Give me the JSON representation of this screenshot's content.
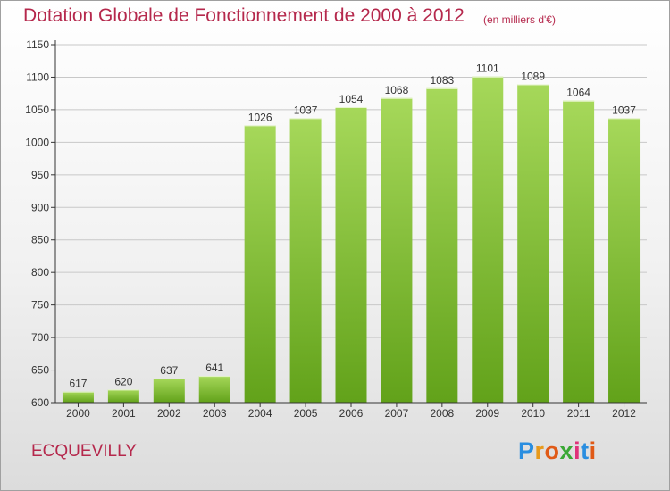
{
  "header": {
    "title": "Dotation Globale de Fonctionnement de 2000 à 2012",
    "subtitle": "(en milliers d'€)"
  },
  "footer": {
    "commune": "ECQUEVILLY",
    "logo_letters": [
      "P",
      "r",
      "o",
      "x",
      "i",
      "t",
      "i"
    ],
    "logo_colors": [
      "#2a8ee0",
      "#e89a1c",
      "#e05a17",
      "#3aa835",
      "#e0337a",
      "#2a8ee0",
      "#e05a17"
    ]
  },
  "colors": {
    "bar_light": "#a6d85a",
    "bar_dark": "#62a21a",
    "axis": "#333333",
    "grid": "#c8c8c8",
    "brand": "#b5284c"
  },
  "chart_data": {
    "type": "bar",
    "categories": [
      "2000",
      "2001",
      "2002",
      "2003",
      "2004",
      "2005",
      "2006",
      "2007",
      "2008",
      "2009",
      "2010",
      "2011",
      "2012"
    ],
    "values": [
      617,
      620,
      637,
      641,
      1026,
      1037,
      1054,
      1068,
      1083,
      1101,
      1089,
      1064,
      1037
    ],
    "value_labels": [
      "617",
      "620",
      "637",
      "641",
      "1026",
      "1037",
      "1054",
      "1068",
      "1083",
      "1101",
      "1089",
      "1064",
      "1037"
    ],
    "y_ticks": [
      "600",
      "650",
      "700",
      "750",
      "800",
      "850",
      "900",
      "950",
      "1000",
      "1050",
      "1100",
      "1150"
    ],
    "ylim": [
      600,
      1150
    ],
    "grid": true,
    "legend": "none"
  }
}
